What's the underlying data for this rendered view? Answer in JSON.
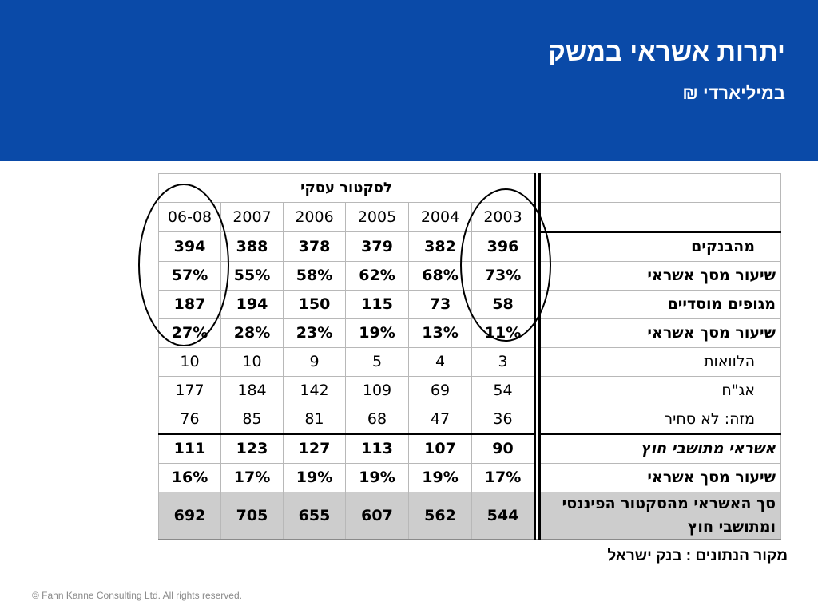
{
  "slide": {
    "title": "יתרות אשראי במשק",
    "subtitle": "במיליארדי ₪"
  },
  "table": {
    "group_header": "לסקטור עסקי",
    "years": [
      "06-08",
      "2007",
      "2006",
      "2005",
      "2004",
      "2003"
    ],
    "rows": [
      {
        "label": "מהבנקים",
        "values": [
          "394",
          "388",
          "378",
          "379",
          "382",
          "396"
        ]
      },
      {
        "label": "שיעור מסך אשראי",
        "values": [
          "57%",
          "55%",
          "58%",
          "62%",
          "68%",
          "73%"
        ]
      },
      {
        "label": "מגופים מוסדיים",
        "values": [
          "187",
          "194",
          "150",
          "115",
          "73",
          "58"
        ]
      },
      {
        "label": "שיעור מסך אשראי",
        "values": [
          "27%",
          "28%",
          "23%",
          "19%",
          "13%",
          "11%"
        ]
      },
      {
        "label": "הלוואות",
        "values": [
          "10",
          "10",
          "9",
          "5",
          "4",
          "3"
        ]
      },
      {
        "label": "אג\"ח",
        "values": [
          "177",
          "184",
          "142",
          "109",
          "69",
          "54"
        ]
      },
      {
        "label": "מזה: לא סחיר",
        "values": [
          "76",
          "85",
          "81",
          "68",
          "47",
          "36"
        ]
      },
      {
        "label": "אשראי מתושבי חוץ",
        "values": [
          "111",
          "123",
          "127",
          "113",
          "107",
          "90"
        ]
      },
      {
        "label": "שיעור מסך אשראי",
        "values": [
          "16%",
          "17%",
          "19%",
          "19%",
          "19%",
          "17%"
        ]
      },
      {
        "label": "סך האשראי מהסקטור הפיננסי ומתושבי חוץ",
        "values": [
          "692",
          "705",
          "655",
          "607",
          "562",
          "544"
        ]
      }
    ]
  },
  "footer": {
    "source": "מקור הנתונים : בנק ישראל",
    "copyright": "© Fahn Kanne Consulting Ltd. All rights reserved."
  }
}
